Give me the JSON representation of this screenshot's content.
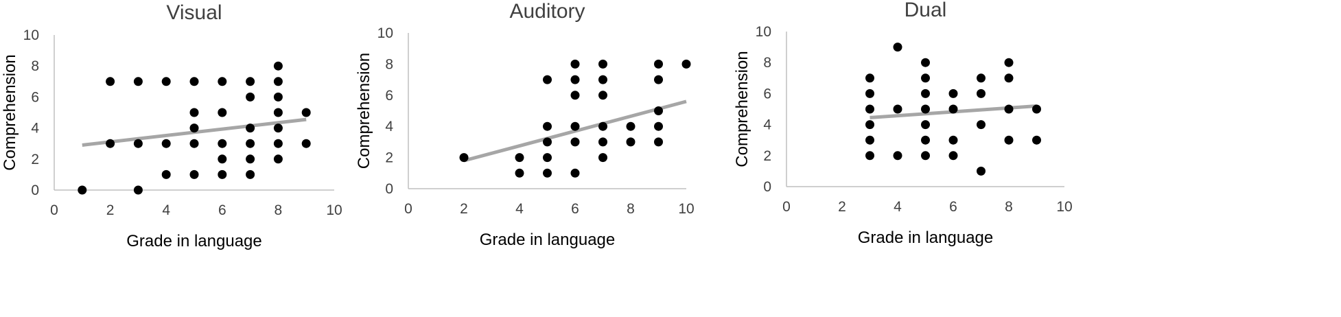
{
  "chart_data": [
    {
      "type": "scatter",
      "title": "Visual",
      "xlabel": "Grade in language",
      "ylabel": "Comprehension",
      "xlim": [
        0,
        10
      ],
      "ylim": [
        0,
        10
      ],
      "xticks": [
        "0",
        "2",
        "4",
        "6",
        "8",
        "10"
      ],
      "yticks": [
        "0",
        "2",
        "4",
        "6",
        "8",
        "10"
      ],
      "grid": false,
      "points": [
        [
          1,
          0
        ],
        [
          2,
          7
        ],
        [
          2,
          3
        ],
        [
          3,
          7
        ],
        [
          3,
          3
        ],
        [
          3,
          0
        ],
        [
          4,
          7
        ],
        [
          4,
          3
        ],
        [
          4,
          1
        ],
        [
          5,
          7
        ],
        [
          5,
          5
        ],
        [
          5,
          4
        ],
        [
          5,
          3
        ],
        [
          5,
          1
        ],
        [
          6,
          7
        ],
        [
          6,
          5
        ],
        [
          6,
          3
        ],
        [
          6,
          2
        ],
        [
          6,
          1
        ],
        [
          7,
          7
        ],
        [
          7,
          6
        ],
        [
          7,
          4
        ],
        [
          7,
          3
        ],
        [
          7,
          2
        ],
        [
          7,
          1
        ],
        [
          8,
          8
        ],
        [
          8,
          7
        ],
        [
          8,
          6
        ],
        [
          8,
          5
        ],
        [
          8,
          4
        ],
        [
          8,
          3
        ],
        [
          8,
          2
        ],
        [
          9,
          5
        ],
        [
          9,
          3
        ]
      ],
      "trendline": {
        "x": [
          1,
          9
        ],
        "y": [
          2.9,
          4.55
        ],
        "color": "#a6a6a6"
      },
      "marker_color": "#000000"
    },
    {
      "type": "scatter",
      "title": "Auditory",
      "xlabel": "Grade in language",
      "ylabel": "Comprehension",
      "xlim": [
        0,
        10
      ],
      "ylim": [
        0,
        10
      ],
      "xticks": [
        "0",
        "2",
        "4",
        "6",
        "8",
        "10"
      ],
      "yticks": [
        "0",
        "2",
        "4",
        "6",
        "8",
        "10"
      ],
      "grid": false,
      "points": [
        [
          2,
          2
        ],
        [
          4,
          2
        ],
        [
          4,
          1
        ],
        [
          5,
          7
        ],
        [
          5,
          4
        ],
        [
          5,
          3
        ],
        [
          5,
          2
        ],
        [
          5,
          1
        ],
        [
          6,
          8
        ],
        [
          6,
          7
        ],
        [
          6,
          6
        ],
        [
          6,
          4
        ],
        [
          6,
          3
        ],
        [
          6,
          1
        ],
        [
          7,
          8
        ],
        [
          7,
          7
        ],
        [
          7,
          6
        ],
        [
          7,
          4
        ],
        [
          7,
          3
        ],
        [
          7,
          2
        ],
        [
          8,
          4
        ],
        [
          8,
          3
        ],
        [
          9,
          8
        ],
        [
          9,
          7
        ],
        [
          9,
          5
        ],
        [
          9,
          4
        ],
        [
          9,
          3
        ],
        [
          10,
          8
        ]
      ],
      "trendline": {
        "x": [
          2,
          10
        ],
        "y": [
          1.8,
          5.6
        ],
        "color": "#a6a6a6"
      },
      "marker_color": "#000000"
    },
    {
      "type": "scatter",
      "title": "Dual",
      "xlabel": "Grade in language",
      "ylabel": "Comprehension",
      "xlim": [
        0,
        10
      ],
      "ylim": [
        0,
        10
      ],
      "xticks": [
        "0",
        "2",
        "4",
        "6",
        "8",
        "10"
      ],
      "yticks": [
        "0",
        "2",
        "4",
        "6",
        "8",
        "10"
      ],
      "grid": false,
      "points": [
        [
          3,
          7
        ],
        [
          3,
          6
        ],
        [
          3,
          5
        ],
        [
          3,
          4
        ],
        [
          3,
          3
        ],
        [
          3,
          2
        ],
        [
          4,
          9
        ],
        [
          4,
          5
        ],
        [
          4,
          2
        ],
        [
          5,
          8
        ],
        [
          5,
          7
        ],
        [
          5,
          6
        ],
        [
          5,
          5
        ],
        [
          5,
          4
        ],
        [
          5,
          3
        ],
        [
          5,
          2
        ],
        [
          6,
          6
        ],
        [
          6,
          5
        ],
        [
          6,
          3
        ],
        [
          6,
          2
        ],
        [
          7,
          7
        ],
        [
          7,
          6
        ],
        [
          7,
          4
        ],
        [
          7,
          1
        ],
        [
          8,
          8
        ],
        [
          8,
          7
        ],
        [
          8,
          5
        ],
        [
          8,
          3
        ],
        [
          9,
          5
        ],
        [
          9,
          3
        ]
      ],
      "trendline": {
        "x": [
          3,
          9
        ],
        "y": [
          4.45,
          5.2
        ],
        "color": "#a6a6a6"
      },
      "marker_color": "#000000"
    }
  ]
}
